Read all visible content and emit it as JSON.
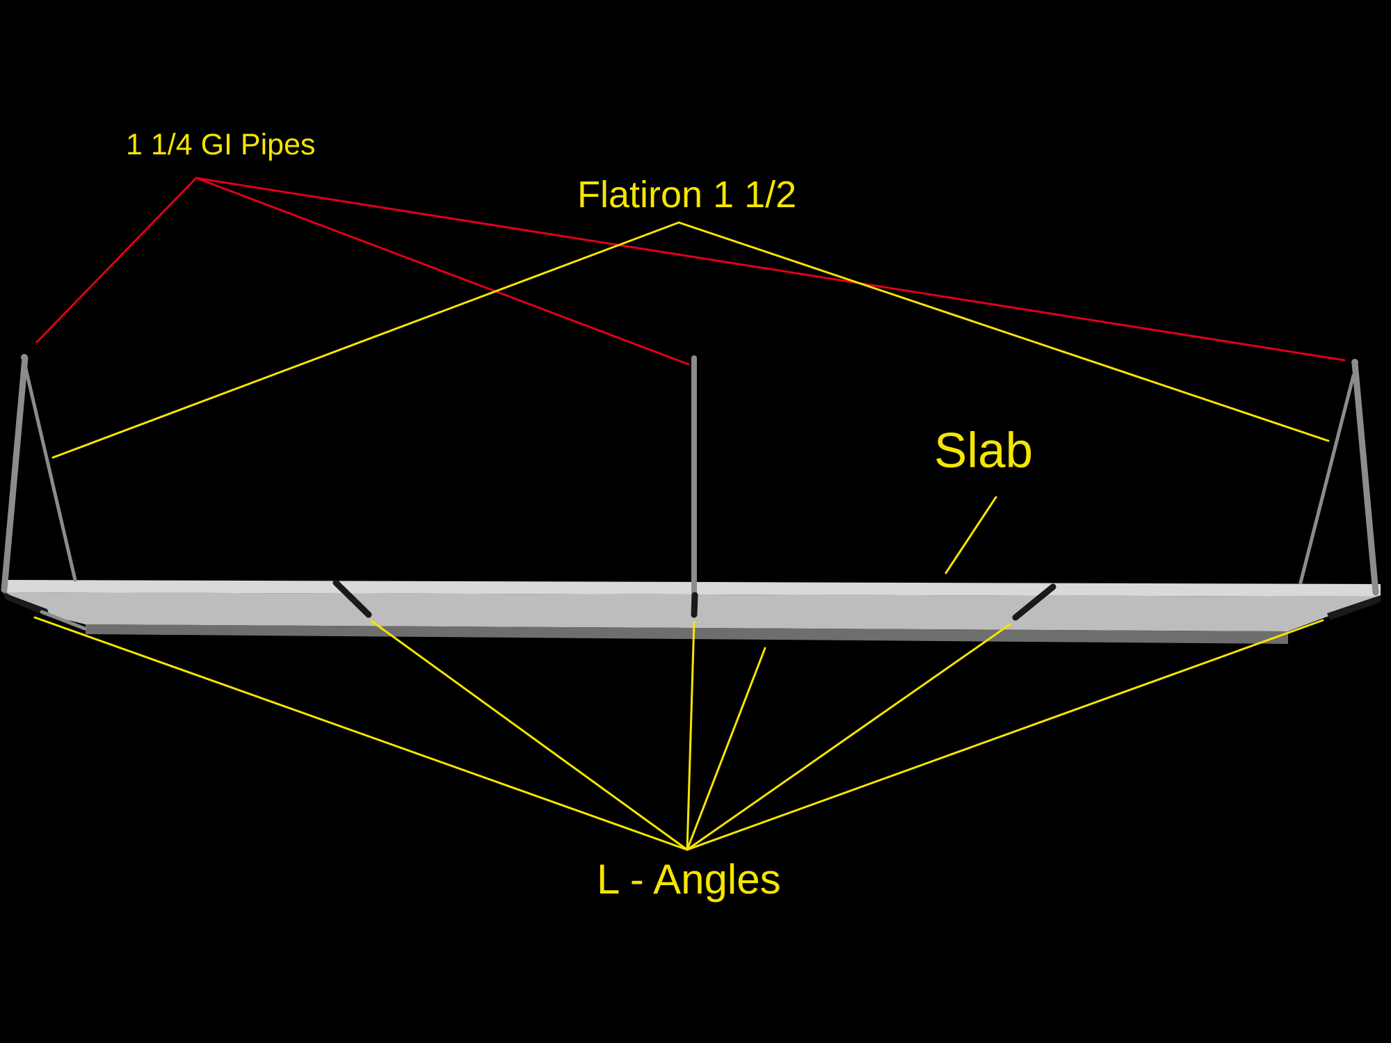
{
  "labels": {
    "pipes": "1 1/4 GI Pipes",
    "flatiron": "Flatiron 1 1/2",
    "slab": "Slab",
    "angles": "L - Angles"
  },
  "colors": {
    "background": "#000000",
    "label_text": "#f5e600",
    "leader_yellow": "#f5e600",
    "leader_red": "#e0001b",
    "slab_top": "#d9d9d9",
    "slab_front": "#bdbdbd",
    "slab_underside": "#6e6e6e",
    "pipe": "#8c8c8c",
    "angle_iron": "#1a1a1a"
  }
}
